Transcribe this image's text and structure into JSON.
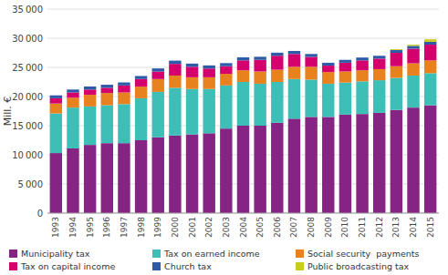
{
  "chart_data": {
    "type": "bar",
    "stacked": true,
    "y_label": "Mill. €",
    "categories": [
      1993,
      1994,
      1995,
      1996,
      1997,
      1998,
      1999,
      2000,
      2001,
      2002,
      2003,
      2004,
      2005,
      2006,
      2007,
      2008,
      2009,
      2010,
      2011,
      2012,
      2013,
      2014,
      2015
    ],
    "series": [
      {
        "name": "Municipality tax",
        "color": "#862483",
        "values": [
          10300,
          11100,
          11700,
          12000,
          12000,
          12500,
          13000,
          13300,
          13500,
          13700,
          14500,
          15000,
          15000,
          15500,
          16200,
          16500,
          16500,
          16900,
          17000,
          17200,
          17700,
          18100,
          18500
        ]
      },
      {
        "name": "Tax on earned income",
        "color": "#3DBFB8",
        "values": [
          6800,
          7000,
          6600,
          6500,
          6700,
          7200,
          7800,
          8200,
          7800,
          7600,
          7400,
          7500,
          7200,
          7000,
          6800,
          6400,
          5700,
          5500,
          5600,
          5600,
          5500,
          5500,
          5500
        ]
      },
      {
        "name": "Social security  payments",
        "color": "#E8821E",
        "values": [
          1700,
          1700,
          2000,
          2100,
          2000,
          2000,
          2200,
          2100,
          2000,
          2000,
          2000,
          2000,
          2100,
          2100,
          2100,
          2200,
          2000,
          1900,
          1900,
          1900,
          2000,
          2100,
          2200
        ]
      },
      {
        "name": "Tax on capital income",
        "color": "#D4006E",
        "values": [
          900,
          900,
          900,
          900,
          1200,
          1300,
          1300,
          2000,
          1800,
          1500,
          1300,
          1700,
          2000,
          2400,
          2200,
          1700,
          1100,
          1500,
          1700,
          1800,
          2300,
          2500,
          2700
        ]
      },
      {
        "name": "Church tax",
        "color": "#2E5BA8",
        "values": [
          500,
          500,
          520,
          520,
          520,
          520,
          520,
          560,
          550,
          540,
          530,
          530,
          520,
          520,
          520,
          500,
          490,
          490,
          490,
          490,
          490,
          490,
          490
        ]
      },
      {
        "name": "Public broadcasting tax",
        "color": "#C8CC1A",
        "values": [
          0,
          0,
          0,
          0,
          0,
          0,
          0,
          0,
          0,
          0,
          0,
          0,
          0,
          0,
          0,
          0,
          0,
          0,
          0,
          0,
          120,
          200,
          430
        ]
      }
    ],
    "ylim": [
      0,
      35000
    ],
    "yticks": [
      0,
      {
        "value": 5000,
        "label": "5 000"
      },
      {
        "value": 10000,
        "label": "10 000"
      },
      {
        "value": 15000,
        "label": "15 000"
      },
      {
        "value": 20000,
        "label": "20 000"
      },
      {
        "value": 25000,
        "label": "25 000"
      },
      {
        "value": 30000,
        "label": "30 000"
      },
      {
        "value": 35000,
        "label": "35 000"
      }
    ],
    "grid": true,
    "legend": "bottom"
  }
}
